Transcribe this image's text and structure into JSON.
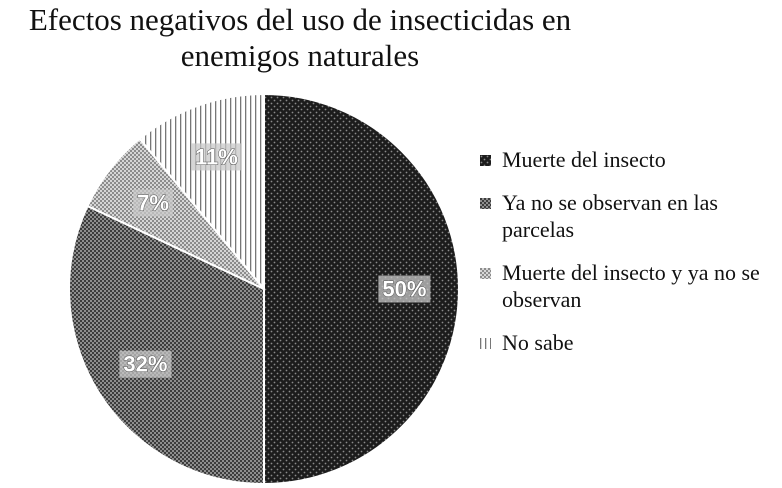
{
  "chart_data": {
    "type": "pie",
    "title_lines": [
      "Efectos negativos del uso de insecticidas en",
      "enemigos naturales"
    ],
    "slices": [
      {
        "label": "Muerte del insecto",
        "value": 50,
        "data_label": "50%",
        "pattern": "dots-dark"
      },
      {
        "label": "Ya no se observan en las parcelas",
        "value": 32,
        "data_label": "32%",
        "pattern": "checker-mid"
      },
      {
        "label": "Muerte del insecto y ya no se observan",
        "value": 7,
        "data_label": "7%",
        "pattern": "checker-light"
      },
      {
        "label": "No sabe",
        "value": 11,
        "data_label": "11%",
        "pattern": "vlines"
      }
    ],
    "legend_position": "right",
    "start": "12 o'clock",
    "direction": "clockwise"
  }
}
